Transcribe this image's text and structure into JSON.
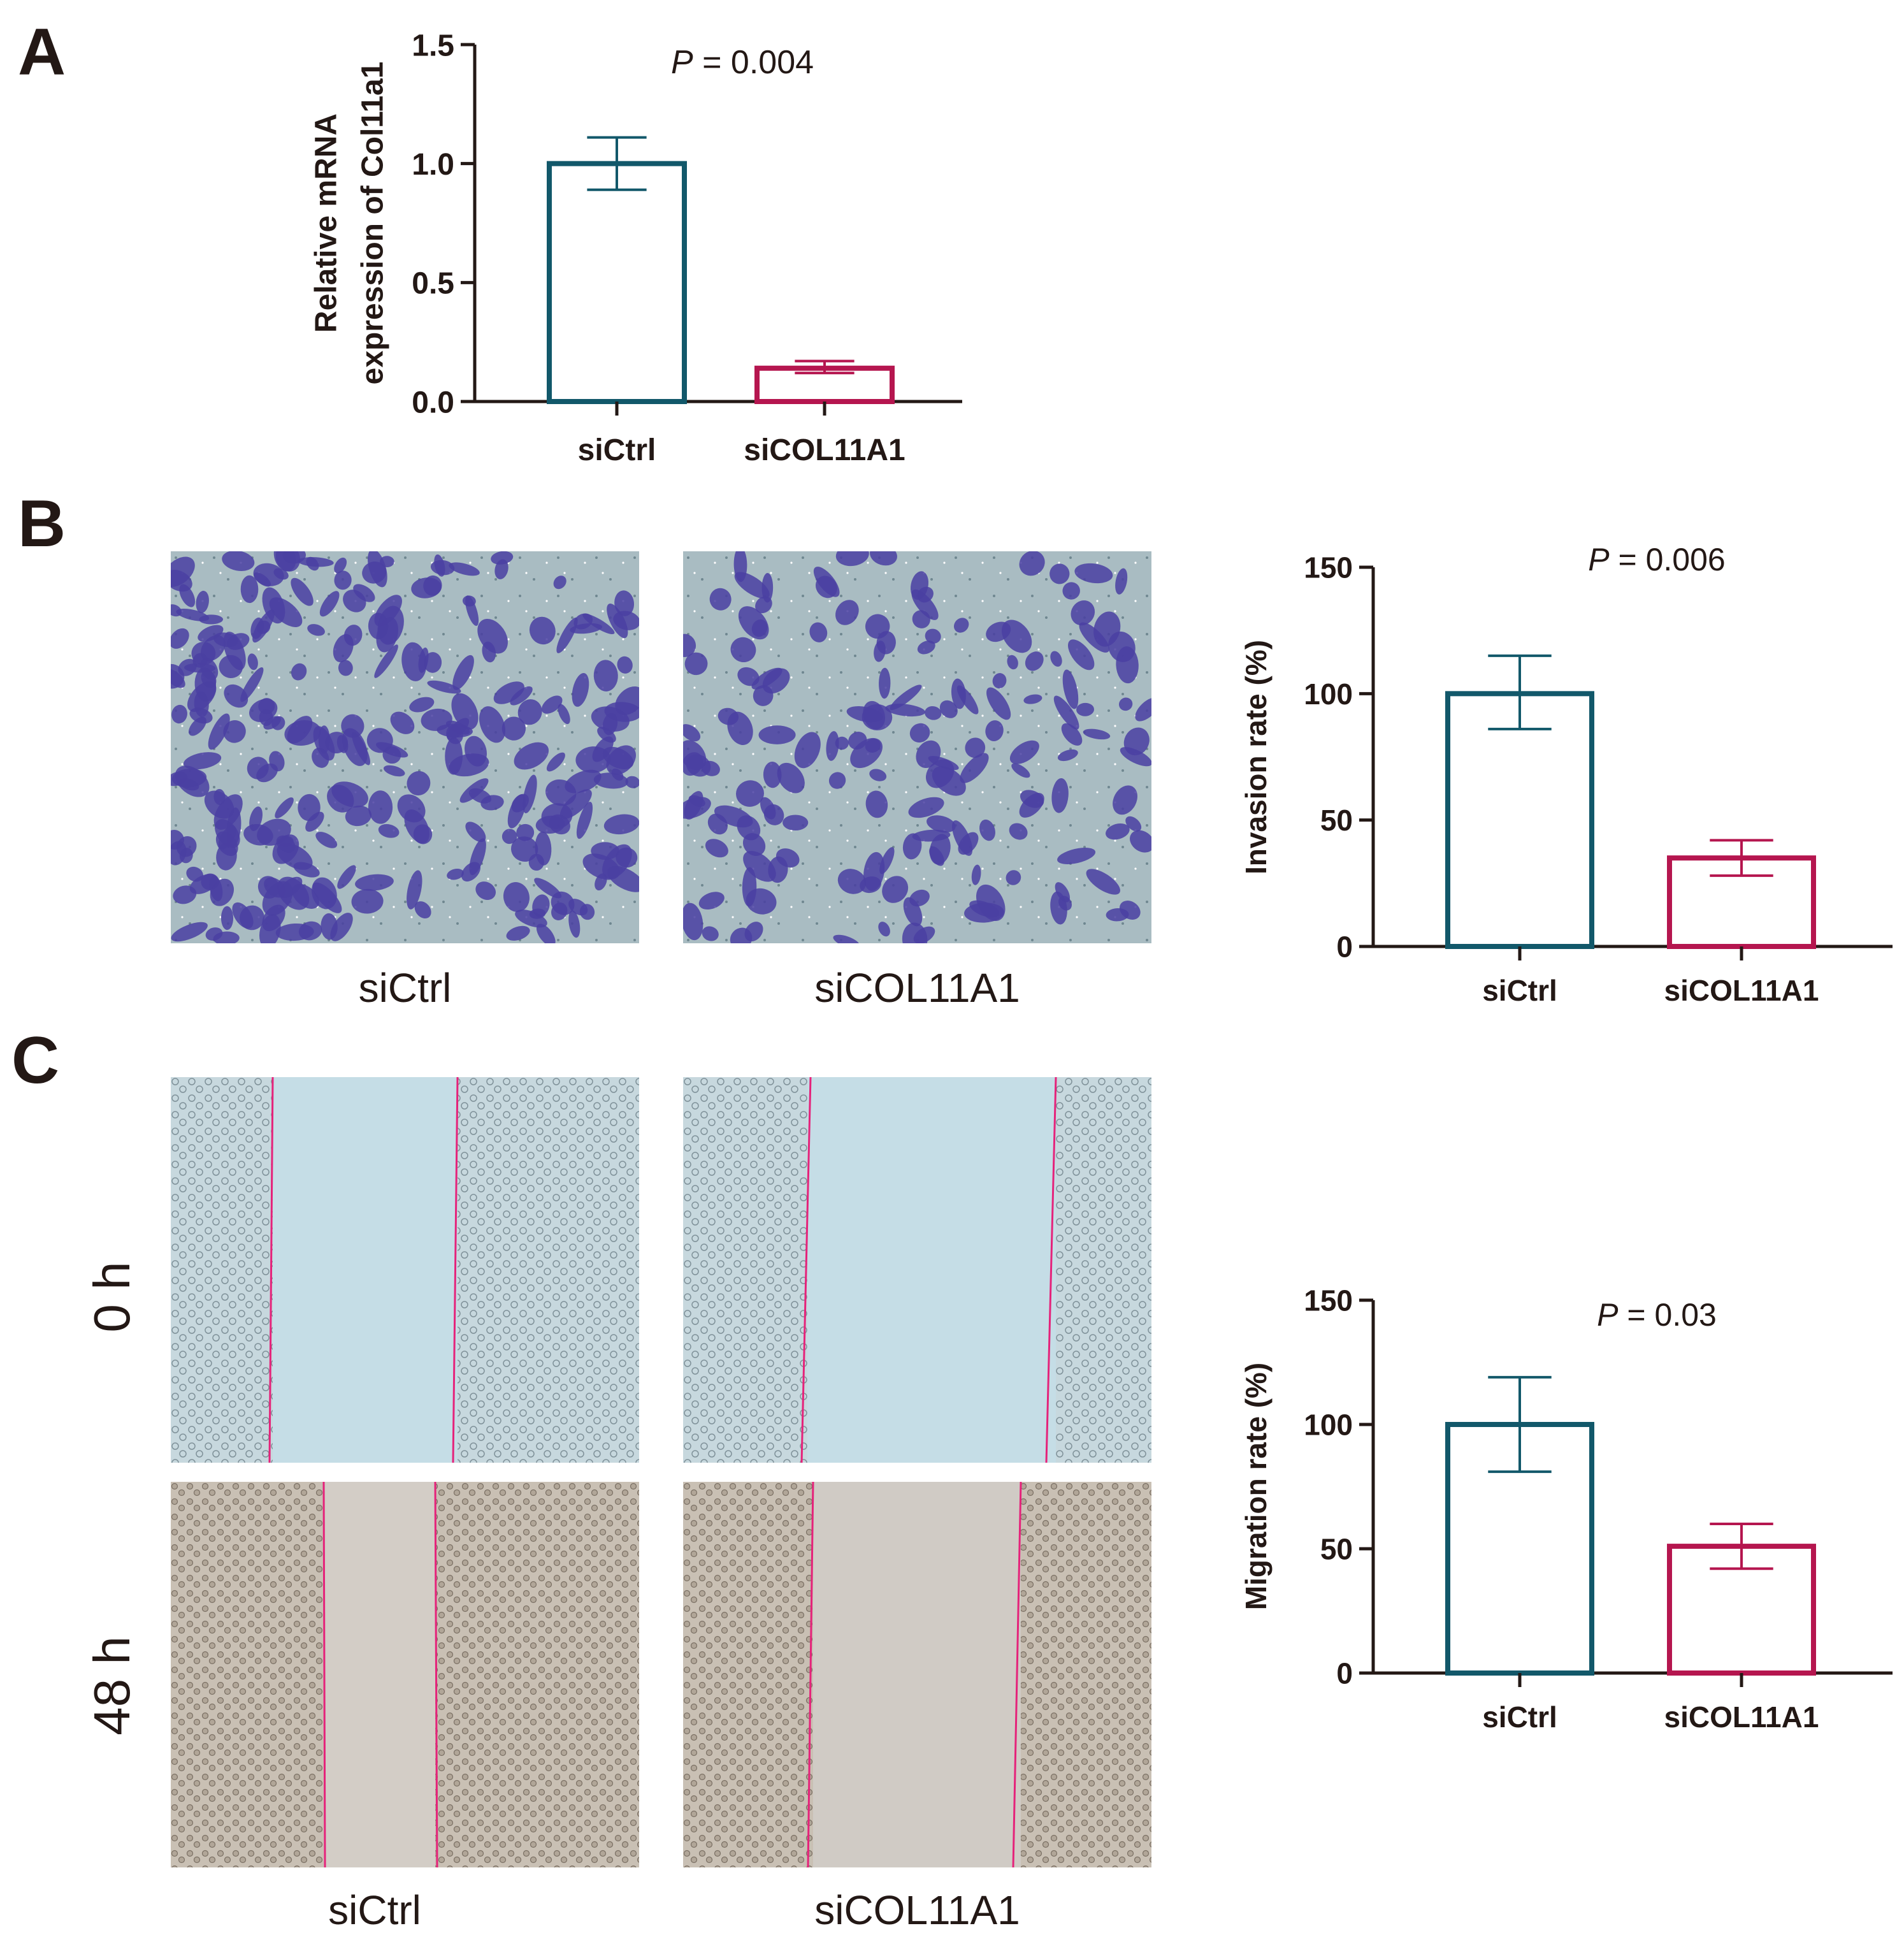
{
  "panels": {
    "a": {
      "letter": "A"
    },
    "b": {
      "letter": "B"
    },
    "c": {
      "letter": "C"
    }
  },
  "images": {
    "b": {
      "captions": [
        "siCtrl",
        "siCOL11A1"
      ]
    },
    "c": {
      "captions": [
        "siCtrl",
        "siCOL11A1"
      ],
      "row_labels": [
        "0 h",
        "48 h"
      ]
    }
  },
  "colors": {
    "siCtrl": "#12586a",
    "siCOL11A1": "#b5164f",
    "axis": "#231815",
    "wound_line": "#e5227a"
  },
  "chart_data": [
    {
      "type": "bar",
      "categories": [
        "siCtrl",
        "siCOL11A1"
      ],
      "values": [
        1.0,
        0.14
      ],
      "error_upper": [
        1.11,
        0.17
      ],
      "error_lower": [
        0.89,
        0.12
      ],
      "ylabel": "Relative mRNA expression of Col11a1",
      "ylabel_lines": [
        "Relative mRNA",
        "expression of Col11a1"
      ],
      "yticks": [
        "0.0",
        "0.5",
        "1.0",
        "1.5"
      ],
      "ylim": [
        0,
        1.5
      ],
      "annotation": {
        "p_symbol": "P",
        "text": " = 0.004"
      }
    },
    {
      "type": "bar",
      "categories": [
        "siCtrl",
        "siCOL11A1"
      ],
      "values": [
        100,
        35
      ],
      "error_upper": [
        115,
        42
      ],
      "error_lower": [
        86,
        28
      ],
      "ylabel": "Invasion rate (%)",
      "ylabel_lines": [
        "Invasion rate (%)"
      ],
      "yticks": [
        "0",
        "50",
        "100",
        "150"
      ],
      "ylim": [
        0,
        150
      ],
      "annotation": {
        "p_symbol": "P",
        "text": " = 0.006"
      }
    },
    {
      "type": "bar",
      "categories": [
        "siCtrl",
        "siCOL11A1"
      ],
      "values": [
        100,
        51
      ],
      "error_upper": [
        119,
        60
      ],
      "error_lower": [
        81,
        42
      ],
      "ylabel": "Migration rate (%)",
      "ylabel_lines": [
        "Migration rate (%)"
      ],
      "yticks": [
        "0",
        "50",
        "100",
        "150"
      ],
      "ylim": [
        0,
        150
      ],
      "annotation": {
        "p_symbol": "P",
        "text": " = 0.03"
      }
    }
  ]
}
